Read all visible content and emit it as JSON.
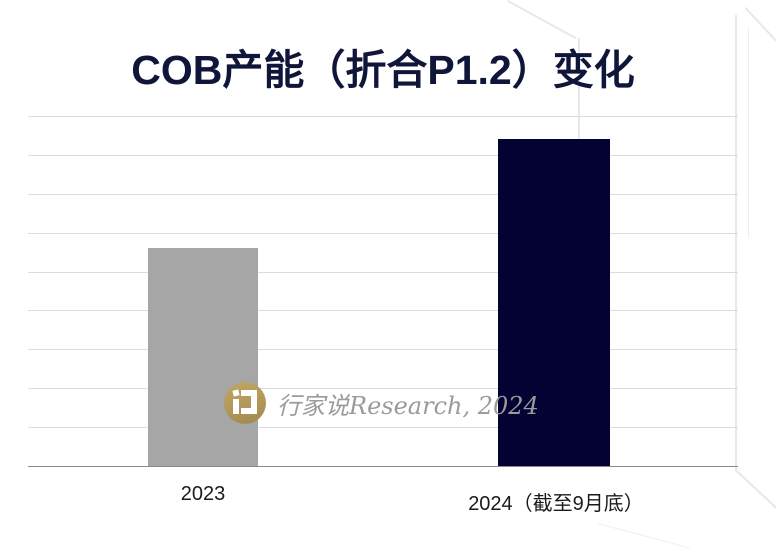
{
  "chart": {
    "title": "COB产能（折合P1.2）变化",
    "watermark": {
      "logo": "hangjiashuo-logo",
      "text": "行家说Research, 2024"
    }
  },
  "chart_data": {
    "type": "bar",
    "title": "COB产能（折合P1.2）变化",
    "categories": [
      "2023",
      "2024（截至9月底）"
    ],
    "values": [
      5.6,
      8.4
    ],
    "value_note": "no y-axis tick labels shown; values estimated in gridline units from unlabeled gridlines; 2024 bar is about 1.5x the 2023 bar",
    "xlabel": "",
    "ylabel": "",
    "ylim": [
      0,
      9
    ],
    "grid": true,
    "legend": false,
    "bar_colors": [
      "#a6a6a6",
      "#040233"
    ]
  },
  "colors": {
    "title": "#10153a",
    "bar_2023": "#a6a6a6",
    "bar_2024": "#040233",
    "gridline": "#dcdcdc",
    "axis_line": "#8a8a8a",
    "watermark_text": "#9b9b9b",
    "watermark_logo": "#b2975a",
    "background": "#ffffff"
  }
}
